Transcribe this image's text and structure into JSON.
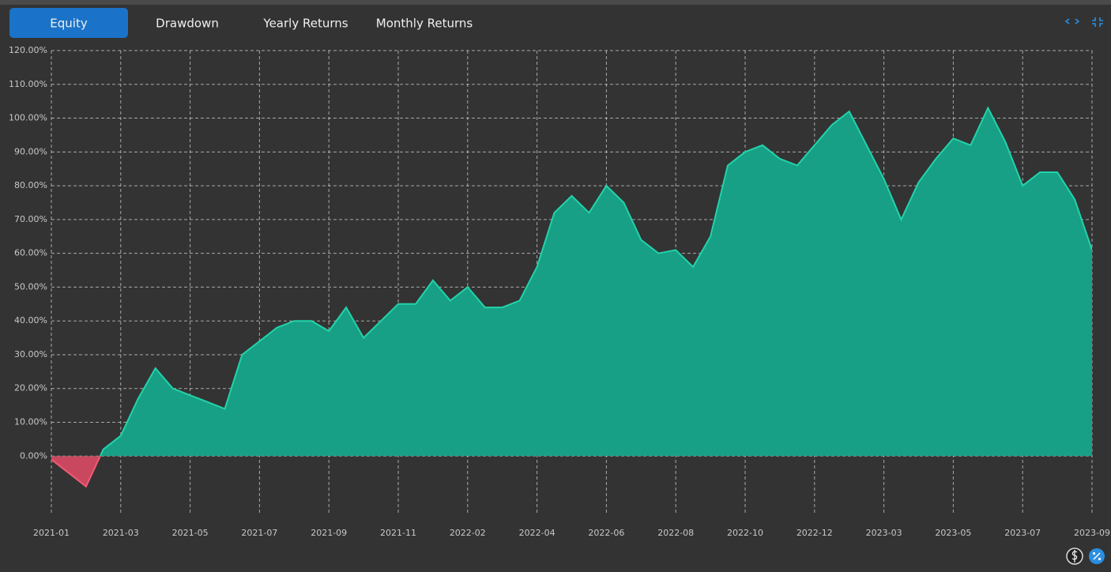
{
  "tabs": [
    "Equity",
    "Drawdown",
    "Yearly Returns",
    "Monthly Returns"
  ],
  "active_tab": 0,
  "chart_data": {
    "type": "area",
    "categories": [
      "2021-01",
      null,
      null,
      null,
      "2021-03",
      null,
      null,
      null,
      "2021-05",
      null,
      null,
      null,
      "2021-07",
      null,
      null,
      null,
      "2021-09",
      null,
      null,
      null,
      "2021-11",
      null,
      null,
      null,
      "2022-02",
      null,
      null,
      null,
      "2022-04",
      null,
      null,
      null,
      "2022-06",
      null,
      null,
      null,
      "2022-08",
      null,
      null,
      null,
      "2022-10",
      null,
      null,
      null,
      "2022-12",
      null,
      null,
      null,
      "2023-03",
      null,
      null,
      null,
      "2023-05",
      null,
      null,
      null,
      "2023-07",
      null,
      null,
      null,
      "2023-09"
    ],
    "values": [
      -1,
      -5,
      -9,
      2,
      6,
      17,
      26,
      20,
      18,
      16,
      14,
      30,
      34,
      38,
      40,
      40,
      37,
      44,
      35,
      40,
      45,
      45,
      52,
      46,
      50,
      44,
      44,
      46,
      56,
      72,
      77,
      72,
      80,
      75,
      64,
      60,
      61,
      56,
      65,
      86,
      90,
      92,
      88,
      86,
      92,
      98,
      102,
      92,
      82,
      70,
      81,
      88,
      94,
      92,
      103,
      93,
      80,
      84,
      84,
      76,
      61
    ],
    "color": "#17a085",
    "line_color": "#22d3aa",
    "negative_color": "#c9485f",
    "ylim": [
      -17,
      120
    ],
    "yticks": [
      {
        "value": 0,
        "label": "0.00%"
      },
      {
        "value": 10,
        "label": "10.00%"
      },
      {
        "value": 20,
        "label": "20.00%"
      },
      {
        "value": 30,
        "label": "30.00%"
      },
      {
        "value": 40,
        "label": "40.00%"
      },
      {
        "value": 50,
        "label": "50.00%"
      },
      {
        "value": 60,
        "label": "60.00%"
      },
      {
        "value": 70,
        "label": "70.00%"
      },
      {
        "value": 80,
        "label": "80.00%"
      },
      {
        "value": 90,
        "label": "90.00%"
      },
      {
        "value": 100,
        "label": "100.00%"
      },
      {
        "value": 110,
        "label": "110.00%"
      },
      {
        "value": 120,
        "label": "120.00%"
      }
    ],
    "grid": true
  }
}
